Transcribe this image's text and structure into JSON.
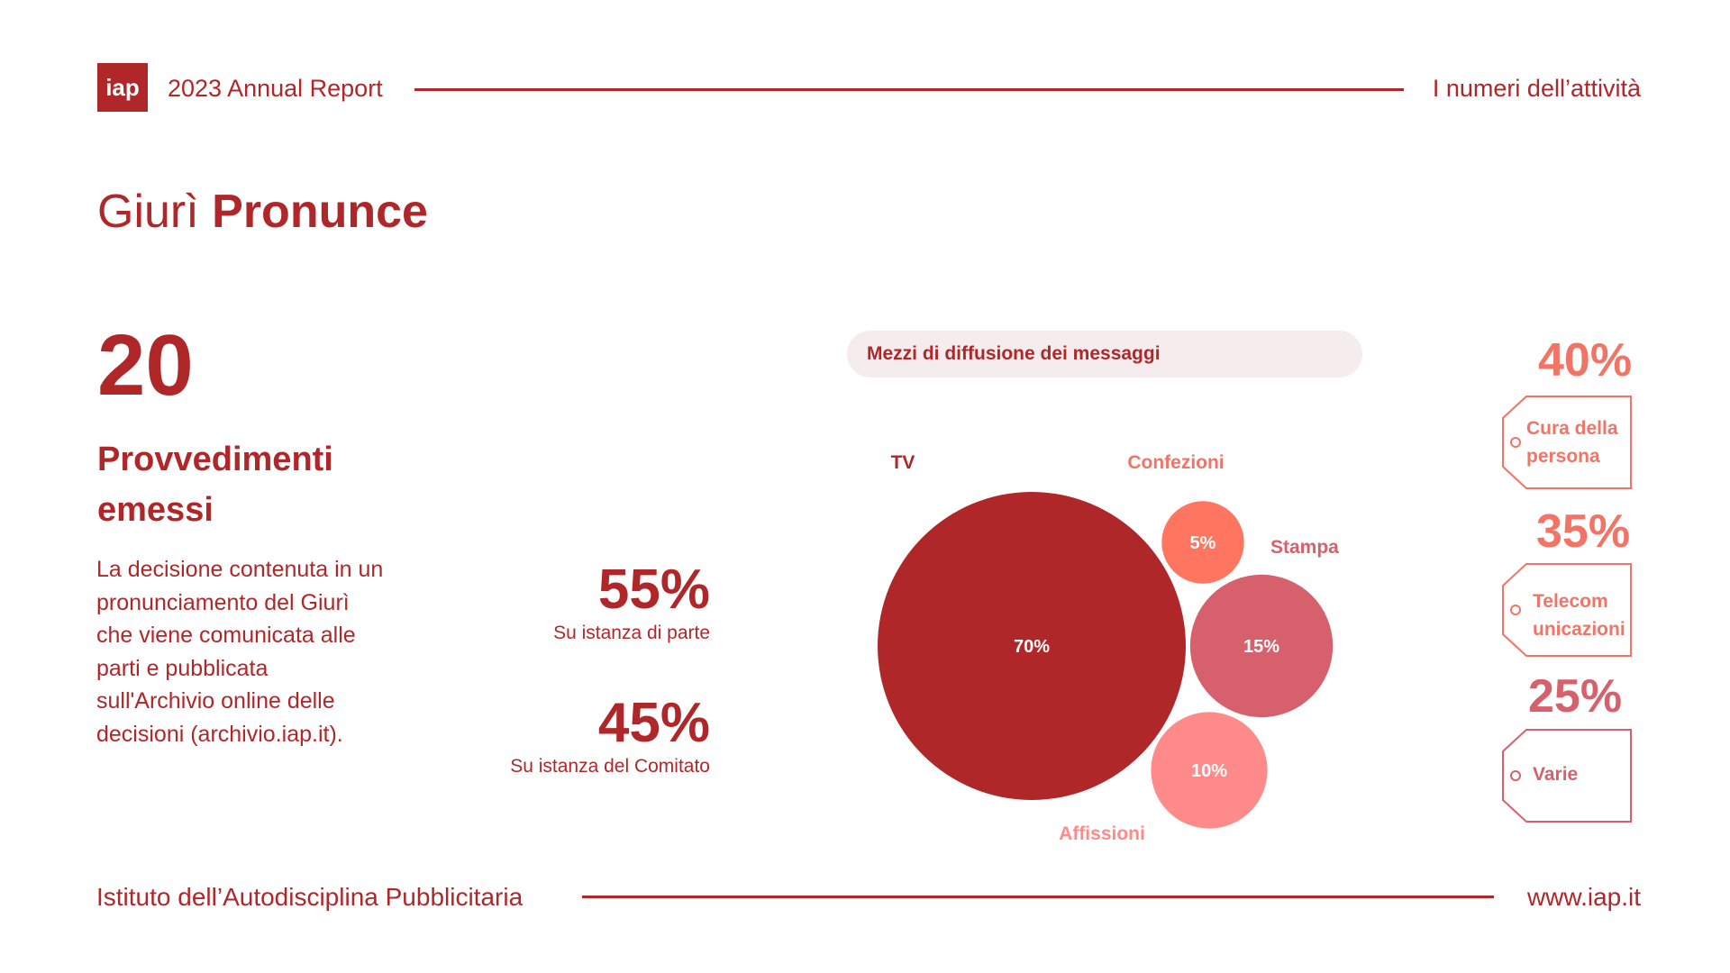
{
  "header": {
    "logo": "iap",
    "report_title": "2023 Annual Report",
    "section": "I numeri dell’attività"
  },
  "page_title": {
    "light": "Giurì",
    "bold": "Pronunce"
  },
  "stat": {
    "number": "20",
    "heading": "Provvedimenti emessi",
    "description": "La decisione contenuta in un pronunciamento del Giurì che viene comunicata alle parti e pubblicata sull'Archivio online delle decisioni (archivio.iap.it)."
  },
  "split": [
    {
      "value": "55%",
      "label": "Su istanza di parte"
    },
    {
      "value": "45%",
      "label": "Su istanza del Comitato"
    }
  ],
  "chart_data": {
    "type": "bubble",
    "title": "Mezzi di diffusione dei messaggi",
    "categories": [
      "TV",
      "Confezioni",
      "Stampa",
      "Affissioni"
    ],
    "values": [
      70,
      5,
      15,
      10
    ],
    "value_labels": [
      "70%",
      "5%",
      "15%",
      "10%"
    ],
    "colors": [
      "#b0272a",
      "#ff7560",
      "#d6616c",
      "#ff8a8a"
    ],
    "label_colors": [
      "#b0272a",
      "#f27466",
      "#d6616c",
      "#ff8a8a"
    ]
  },
  "sectors": [
    {
      "value": "40%",
      "label_lines": [
        "Cura della",
        "persona"
      ],
      "color": "#f27466"
    },
    {
      "value": "35%",
      "label_lines": [
        "Telecom",
        "unicazioni"
      ],
      "color": "#f27466"
    },
    {
      "value": "25%",
      "label_lines": [
        "Varie"
      ],
      "color": "#d6616c"
    }
  ],
  "footer": {
    "org": "Istituto dell’Autodisciplina Pubblicitaria",
    "url": "www.iap.it"
  }
}
